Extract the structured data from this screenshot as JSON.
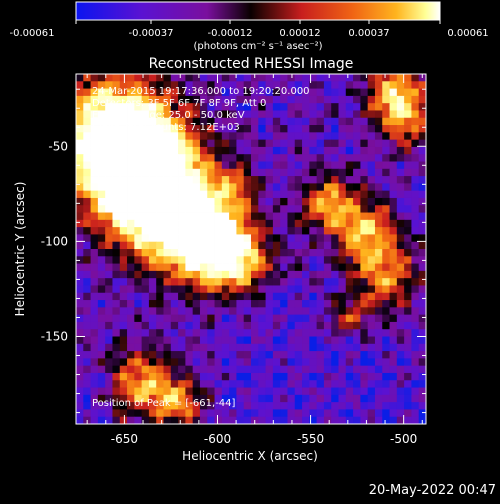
{
  "colorbar": {
    "tick_labels": [
      "-0.00061",
      "-0.00037",
      "-0.00012",
      "0.00012",
      "0.00037",
      "0.00061"
    ],
    "units_label": "(photons cm⁻² s⁻¹ asec⁻²)"
  },
  "title": "Reconstructed RHESSI Image",
  "annotations": [
    "24-Mar-2015 19:17:36.000 to 19:20:20.000",
    "Detectors: 3F 5F 6F 7F 8F 9F, Att 0",
    "Energy Range: 25.0 - 50.0 keV",
    "Clean    Total counts: 7.12E+03"
  ],
  "peak_label": "Position of Peak = [-661,-44]",
  "footer_date": "20-May-2022 00:47",
  "chart_data": {
    "type": "heatmap",
    "title": "Reconstructed RHESSI Image",
    "xlabel": "Heliocentric X (arcsec)",
    "ylabel": "Heliocentric Y (arcsec)",
    "xlim": [
      -676,
      -488
    ],
    "ylim": [
      -196,
      -12
    ],
    "x_ticks": [
      -650,
      -600,
      -550,
      -500
    ],
    "y_ticks": [
      -50,
      -100,
      -150
    ],
    "x_tick_labels": [
      "-650",
      "-600",
      "-550",
      "-500"
    ],
    "y_tick_labels": [
      "-50",
      "-100",
      "-150"
    ],
    "colorbar_range": [
      -0.00061,
      0.00061
    ],
    "colormap": "blue-purple-red-orange-yellow-white",
    "peak": [
      -661,
      -44
    ],
    "grid": false,
    "colors": {
      "stops": [
        "#0a1ee6",
        "#5a12d2",
        "#7a0f9e",
        "#000000",
        "#c81e1e",
        "#f06414",
        "#ffb41e",
        "#ffff96",
        "#ffffff"
      ]
    }
  }
}
